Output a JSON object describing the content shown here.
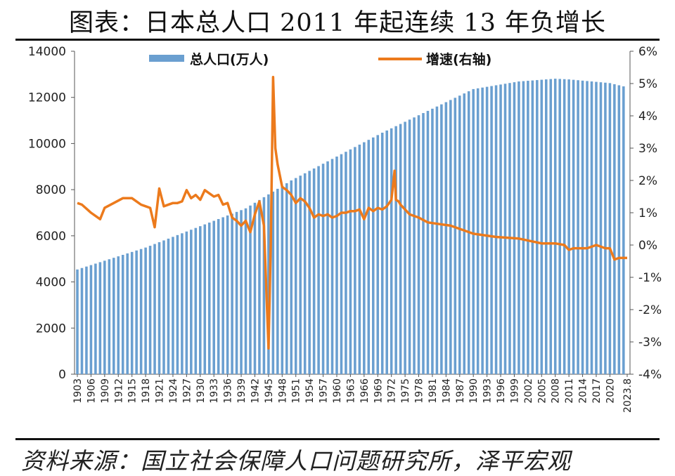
{
  "title": "图表：日本总人口 2011 年起连续 13 年负增长",
  "source": "资料来源：国立社会保障人口问题研究所，泽平宏观",
  "colors": {
    "bar": "#6a9fd0",
    "line": "#ec7a1c"
  },
  "chart_data": {
    "type": "bar+line",
    "title": "图表：日本总人口 2011 年起连续 13 年负增长",
    "left_axis": {
      "ylim": [
        0,
        14000
      ],
      "ticks": [
        "0",
        "2000",
        "4000",
        "6000",
        "8000",
        "10000",
        "12000",
        "14000"
      ]
    },
    "right_axis": {
      "ylim": [
        -4,
        6
      ],
      "ticks": [
        "-4%",
        "-3%",
        "-2%",
        "-1%",
        "0%",
        "1%",
        "2%",
        "3%",
        "4%",
        "5%",
        "6%"
      ]
    },
    "x_tick_labels": [
      "1903",
      "1906",
      "1909",
      "1912",
      "1915",
      "1918",
      "1921",
      "1924",
      "1927",
      "1930",
      "1933",
      "1936",
      "1939",
      "1942",
      "1945",
      "1948",
      "1951",
      "1954",
      "1957",
      "1960",
      "1963",
      "1966",
      "1969",
      "1972",
      "1975",
      "1978",
      "1981",
      "1984",
      "1987",
      "1990",
      "1993",
      "1996",
      "1999",
      "2002",
      "2005",
      "2008",
      "2011",
      "2014",
      "2017",
      "2020",
      "2023.8"
    ],
    "x_keypoints": [
      1903,
      1918,
      1940,
      1950,
      1970,
      1990,
      2000,
      2008,
      2011,
      2020,
      2023.8
    ],
    "population_keypoints": [
      4540,
      5490,
      7190,
      8400,
      10470,
      12360,
      12690,
      12810,
      12780,
      12620,
      12440
    ],
    "growth_keypoints_x": [
      1903,
      1904,
      1906,
      1908,
      1909,
      1911,
      1913,
      1915,
      1916,
      1917,
      1918,
      1919,
      1920,
      1921,
      1922,
      1924,
      1925,
      1926,
      1927,
      1928,
      1929,
      1930,
      1931,
      1932,
      1933,
      1934,
      1935,
      1936,
      1937,
      1938,
      1939,
      1940,
      1941,
      1942,
      1943,
      1944,
      1945,
      1945.5,
      1946,
      1946.5,
      1947,
      1948,
      1949,
      1950,
      1951,
      1952,
      1953,
      1954,
      1955,
      1956,
      1957,
      1958,
      1959,
      1960,
      1961,
      1962,
      1963,
      1964,
      1965,
      1966,
      1967,
      1968,
      1969,
      1970,
      1971,
      1972,
      1972.7,
      1973,
      1973.6,
      1974,
      1975,
      1976,
      1977,
      1978,
      1980,
      1985,
      1990,
      1995,
      2000,
      2005,
      2008,
      2010,
      2011,
      2012,
      2015,
      2017,
      2019,
      2020,
      2021,
      2022,
      2023.8
    ],
    "growth_keypoints_y": [
      1.3,
      1.25,
      1.0,
      0.8,
      1.15,
      1.3,
      1.45,
      1.45,
      1.35,
      1.25,
      1.2,
      1.15,
      0.55,
      1.75,
      1.2,
      1.3,
      1.3,
      1.35,
      1.7,
      1.45,
      1.55,
      1.4,
      1.7,
      1.6,
      1.5,
      1.55,
      1.25,
      1.3,
      0.85,
      0.75,
      0.6,
      0.75,
      0.4,
      0.95,
      1.35,
      0.6,
      -3.2,
      0.0,
      5.2,
      3.0,
      2.5,
      1.8,
      1.7,
      1.55,
      1.3,
      1.45,
      1.35,
      1.15,
      0.85,
      0.95,
      0.9,
      0.95,
      0.85,
      0.9,
      1.0,
      1.0,
      1.05,
      1.05,
      1.1,
      0.8,
      1.15,
      1.05,
      1.15,
      1.1,
      1.2,
      1.4,
      2.3,
      1.4,
      1.35,
      1.25,
      1.1,
      0.95,
      0.9,
      0.85,
      0.7,
      0.6,
      0.35,
      0.25,
      0.2,
      0.05,
      0.05,
      0.0,
      -0.15,
      -0.1,
      -0.1,
      0.0,
      -0.1,
      -0.1,
      -0.45,
      -0.4,
      -0.4
    ],
    "series": [
      {
        "name": "总人口(万人)",
        "type": "bar",
        "axis": "left"
      },
      {
        "name": "增速(右轴)",
        "type": "line",
        "axis": "right"
      }
    ],
    "legend_placement": "top"
  }
}
